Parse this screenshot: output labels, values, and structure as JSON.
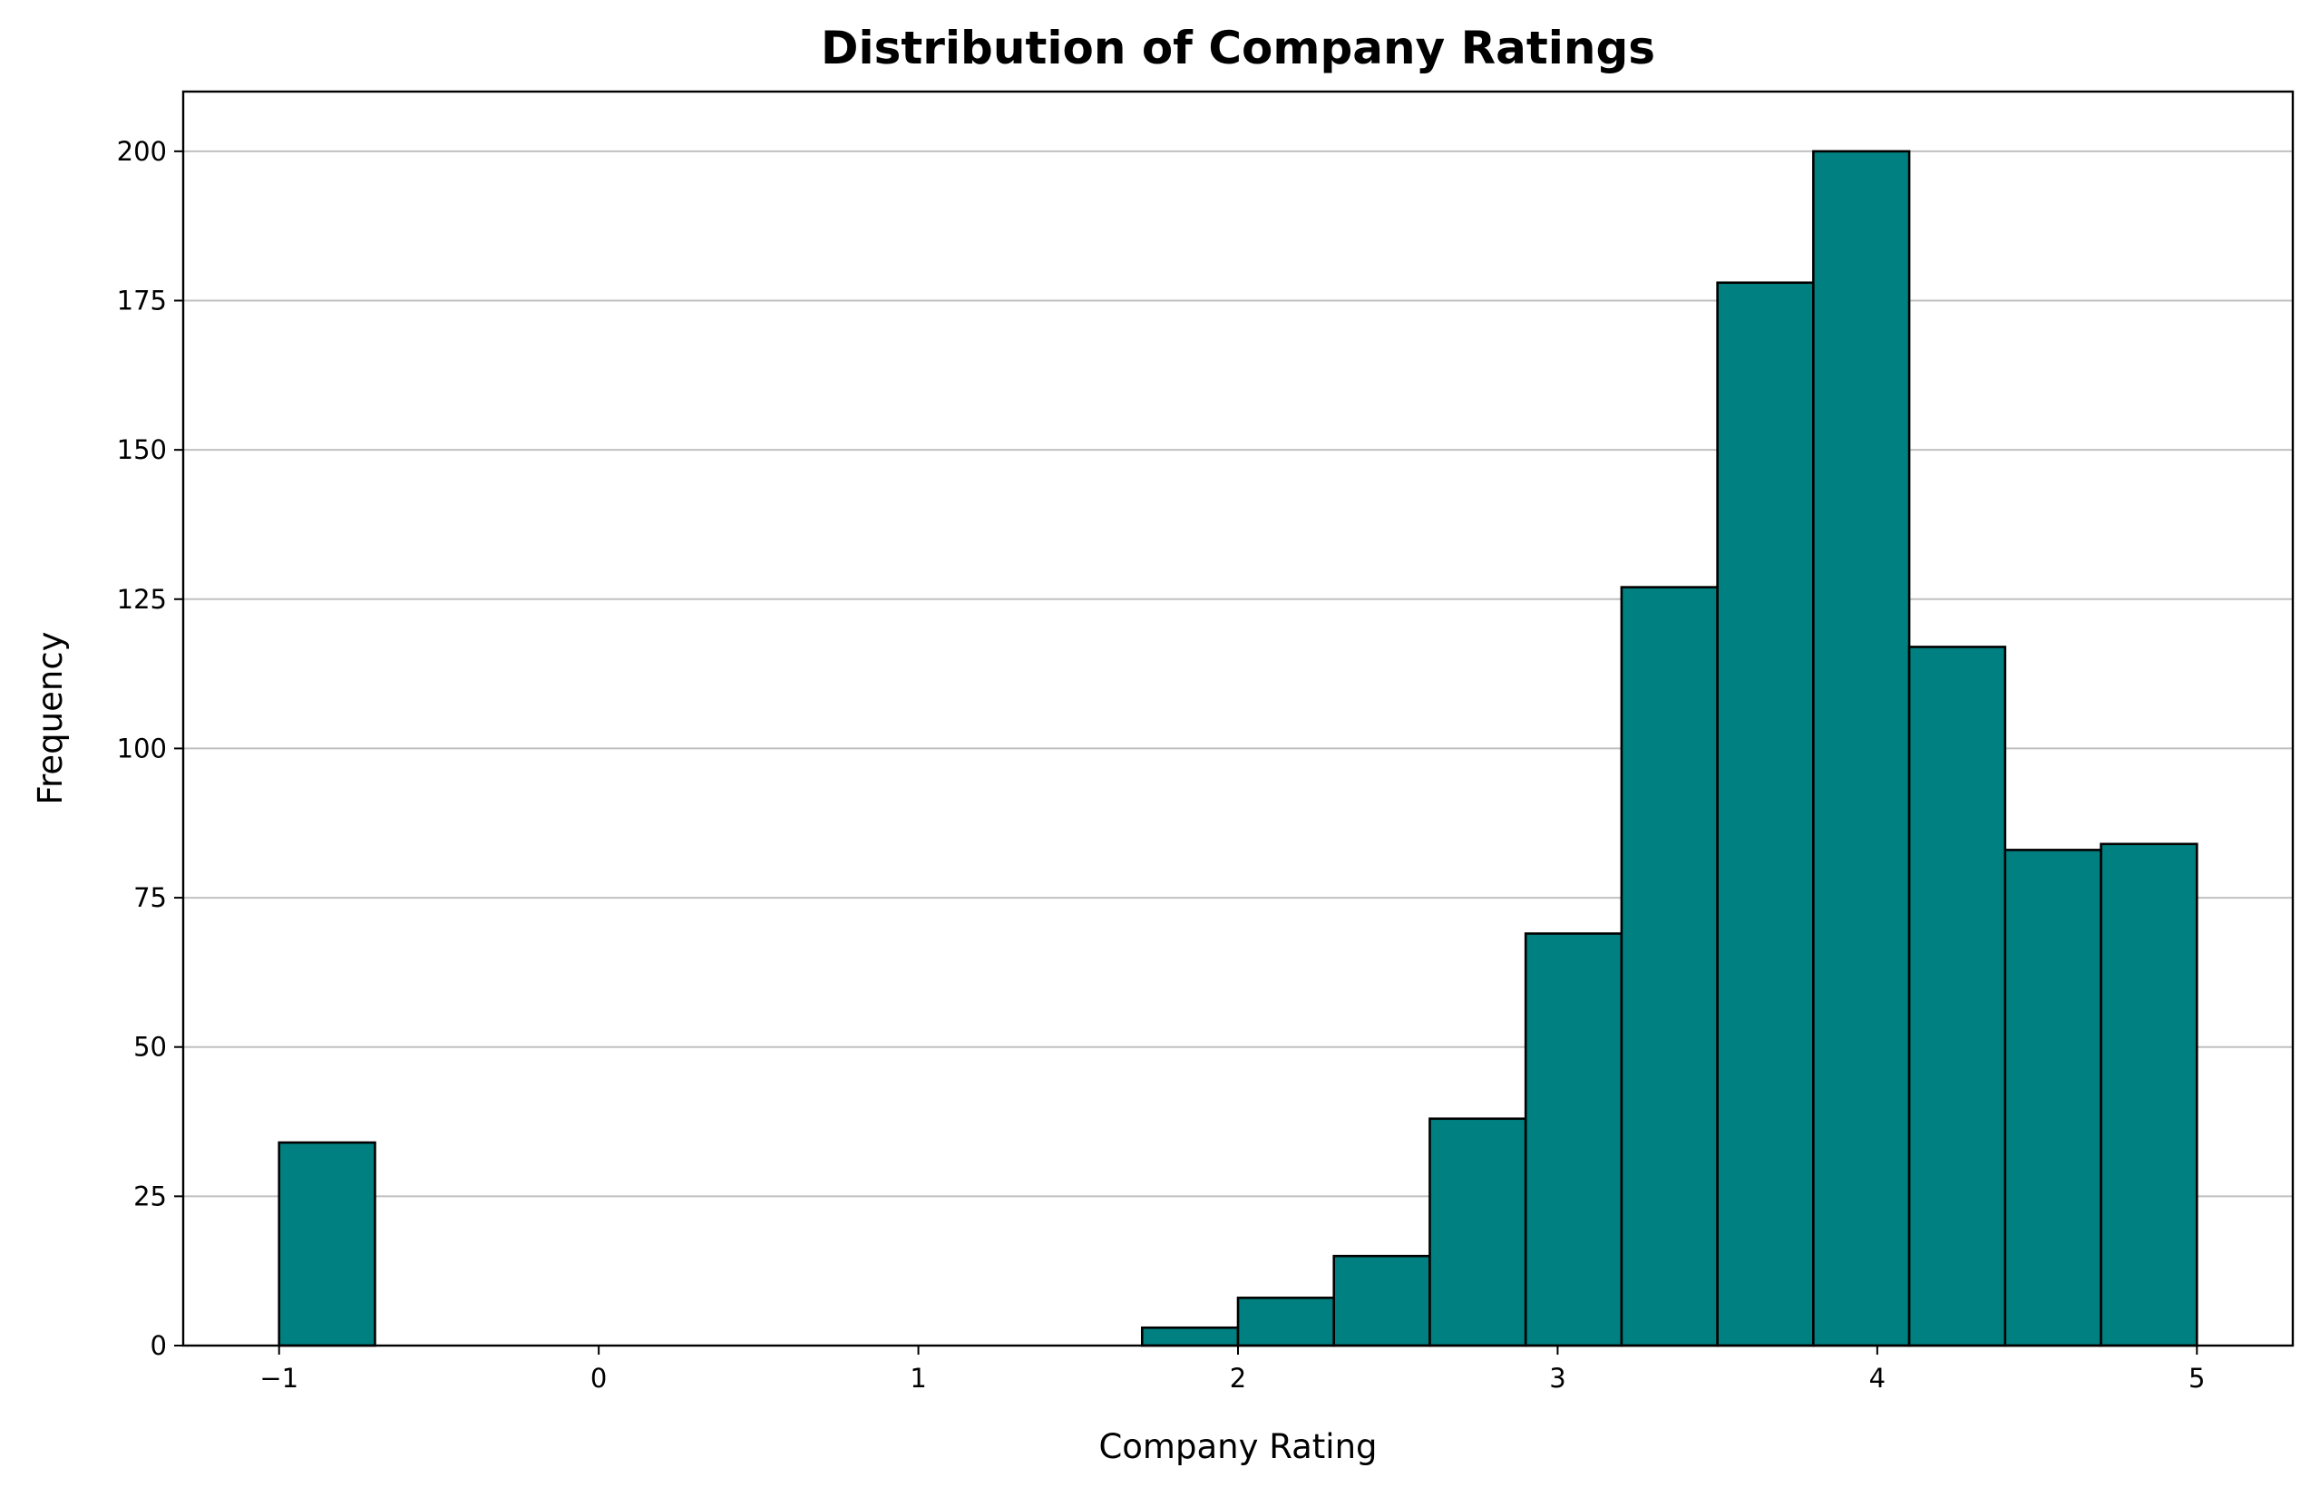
{
  "chart_data": {
    "type": "histogram",
    "title": "Distribution of Company Ratings",
    "xlabel": "Company Rating",
    "ylabel": "Frequency",
    "bins": [
      -1,
      -0.7,
      -0.4,
      -0.1,
      0.2,
      0.5,
      0.8,
      1.1,
      1.4,
      1.7,
      2.0,
      2.3,
      2.6,
      2.9,
      3.2,
      3.5,
      3.8,
      4.1,
      4.4,
      4.7,
      5
    ],
    "values": [
      34,
      0,
      0,
      0,
      0,
      0,
      0,
      0,
      0,
      3,
      8,
      15,
      38,
      69,
      127,
      178,
      200,
      117,
      83,
      84
    ],
    "color": "#008080",
    "edgecolor": "#000000",
    "xlim": [
      -1.3,
      5.3
    ],
    "ylim": [
      0,
      210
    ],
    "xticks": [
      {
        "value": -1,
        "label": "−1"
      },
      0,
      1,
      2,
      3,
      4,
      5
    ],
    "yticks": [
      0,
      25,
      50,
      75,
      100,
      125,
      150,
      175,
      200
    ],
    "grid": "y"
  }
}
